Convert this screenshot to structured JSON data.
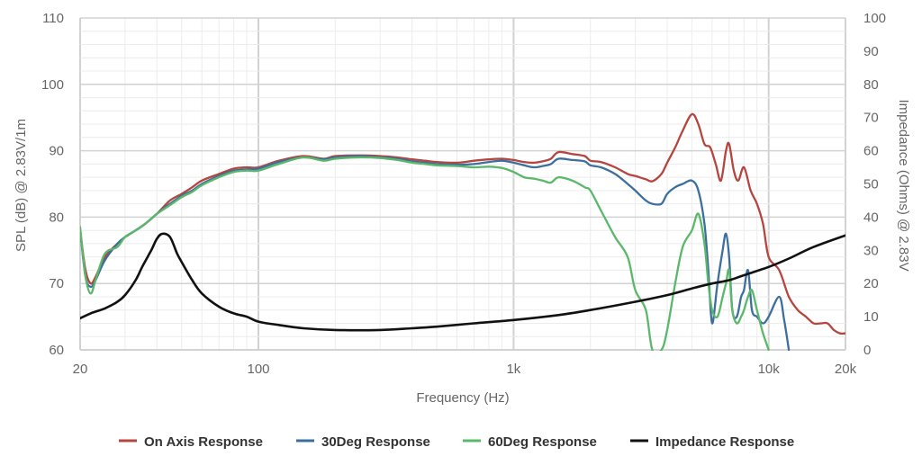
{
  "chart_data": {
    "type": "line",
    "xlabel": "Frequency (Hz)",
    "ylabel": "SPL (dB) @ 2.83V/1m",
    "y2label": "Impedance (Ohms) @ 2.83V",
    "xscale": "log",
    "xlim": [
      20,
      20000
    ],
    "ylim": [
      60,
      110
    ],
    "y2lim": [
      0,
      100
    ],
    "grid": true,
    "legend_position": "bottom",
    "x_ticks": [
      {
        "value": 20,
        "label": "20"
      },
      {
        "value": 100,
        "label": "100"
      },
      {
        "value": 1000,
        "label": "1k"
      },
      {
        "value": 10000,
        "label": "10k"
      },
      {
        "value": 20000,
        "label": "20k"
      }
    ],
    "y_ticks": [
      "60",
      "70",
      "80",
      "90",
      "100",
      "110"
    ],
    "y2_ticks": [
      "0",
      "10",
      "20",
      "30",
      "40",
      "50",
      "60",
      "70",
      "80",
      "90",
      "100"
    ],
    "series": [
      {
        "name": "On Axis Response",
        "color": "#b5453f",
        "axis": "left",
        "x": [
          20,
          21,
          22,
          23,
          25,
          28,
          30,
          33,
          36,
          40,
          45,
          50,
          55,
          60,
          70,
          80,
          90,
          100,
          120,
          150,
          180,
          200,
          250,
          300,
          350,
          400,
          450,
          500,
          600,
          700,
          800,
          900,
          1000,
          1100,
          1200,
          1300,
          1400,
          1500,
          1700,
          1900,
          2000,
          2200,
          2500,
          2800,
          3000,
          3300,
          3500,
          3800,
          4000,
          4300,
          4600,
          5000,
          5300,
          5600,
          5900,
          6200,
          6500,
          6800,
          7000,
          7300,
          7600,
          8000,
          8500,
          9000,
          9500,
          10000,
          11000,
          12000,
          13000,
          14000,
          15000,
          16000,
          17000,
          18000,
          19000,
          20000
        ],
        "y": [
          78,
          72,
          70,
          71,
          74,
          76,
          77,
          78,
          79,
          80.5,
          82.5,
          83.5,
          84.5,
          85.5,
          86.5,
          87.3,
          87.5,
          87.5,
          88.5,
          89.2,
          88.8,
          89.2,
          89.3,
          89.2,
          89,
          88.7,
          88.5,
          88.3,
          88.2,
          88.5,
          88.7,
          88.8,
          88.6,
          88.3,
          88.2,
          88.4,
          88.8,
          89.8,
          89.5,
          89.2,
          88.5,
          88.3,
          87.5,
          86.5,
          86.2,
          85.7,
          85.4,
          86.5,
          88.2,
          90.5,
          93,
          95.5,
          94,
          91,
          90.5,
          88,
          85.5,
          90,
          91,
          87,
          85.5,
          87.5,
          84,
          82,
          79,
          74,
          72,
          68,
          66,
          65,
          64,
          64,
          64,
          63,
          62.5,
          62.5
        ]
      },
      {
        "name": "30Deg Response",
        "color": "#3d6f9e",
        "axis": "left",
        "x": [
          20,
          21,
          22,
          23,
          25,
          28,
          30,
          33,
          36,
          40,
          45,
          50,
          55,
          60,
          70,
          80,
          90,
          100,
          120,
          150,
          180,
          200,
          250,
          300,
          350,
          400,
          450,
          500,
          600,
          700,
          800,
          900,
          1000,
          1100,
          1200,
          1300,
          1400,
          1500,
          1700,
          1900,
          2000,
          2200,
          2500,
          2800,
          3000,
          3300,
          3500,
          3800,
          4000,
          4300,
          4600,
          5000,
          5300,
          5600,
          5800,
          6000,
          6300,
          6600,
          6800,
          7000,
          7200,
          7500,
          7800,
          8000,
          8300,
          8600,
          9000,
          9500,
          10000,
          11000,
          11500,
          12000
        ],
        "y": [
          78,
          71,
          69.5,
          70.5,
          73.5,
          76,
          77,
          78,
          79,
          80.5,
          82,
          83.2,
          84,
          85,
          86.2,
          87,
          87.2,
          87.3,
          88.3,
          89,
          88.7,
          89,
          89.2,
          89,
          88.8,
          88.4,
          88.2,
          88,
          87.9,
          88,
          88.3,
          88.5,
          88.2,
          87.8,
          87.5,
          87.7,
          88,
          88.8,
          88.6,
          88.4,
          87.8,
          87.5,
          86.5,
          85,
          84,
          82.5,
          82,
          82,
          83.5,
          84.5,
          85,
          85.5,
          84,
          79,
          72,
          64,
          70,
          75,
          77.5,
          74,
          66,
          65,
          68,
          69,
          72,
          66,
          65,
          64,
          65,
          68,
          64.5,
          60
        ]
      },
      {
        "name": "60Deg Response",
        "color": "#5bb86b",
        "axis": "left",
        "x": [
          20,
          21,
          22,
          23,
          25,
          28,
          30,
          33,
          36,
          40,
          45,
          50,
          55,
          60,
          70,
          80,
          90,
          100,
          120,
          150,
          180,
          200,
          250,
          300,
          350,
          400,
          450,
          500,
          600,
          700,
          800,
          900,
          1000,
          1100,
          1200,
          1300,
          1400,
          1500,
          1700,
          1900,
          2000,
          2200,
          2500,
          2800,
          3000,
          3300,
          3500,
          3800,
          4000,
          4300,
          4600,
          5000,
          5300,
          5600,
          5800,
          6000,
          6300,
          6600,
          6800,
          7000,
          7200,
          7500,
          7800,
          8000,
          8300,
          8600,
          9000,
          9500,
          10000
        ],
        "y": [
          78.5,
          71,
          68.5,
          70.5,
          74.5,
          75.5,
          77,
          78,
          79,
          80.5,
          81.8,
          83,
          83.8,
          84.8,
          86,
          86.8,
          87,
          87,
          88,
          89,
          88.5,
          88.8,
          89,
          88.9,
          88.6,
          88.2,
          88,
          87.8,
          87.7,
          87.5,
          87.6,
          87.4,
          86.8,
          86,
          85.8,
          85.5,
          85.2,
          86,
          85.5,
          84.5,
          84,
          81,
          77,
          74,
          69,
          66,
          60,
          60,
          63,
          70,
          75.5,
          78,
          80.5,
          76,
          70,
          66,
          65,
          68,
          70,
          72,
          66,
          64,
          65,
          66,
          68,
          69,
          66,
          62.5,
          60
        ]
      },
      {
        "name": "Impedance Response",
        "color": "#111111",
        "axis": "right",
        "x": [
          20,
          22,
          25,
          28,
          30,
          33,
          35,
          38,
          40,
          42,
          45,
          48,
          50,
          55,
          60,
          70,
          80,
          90,
          100,
          120,
          150,
          200,
          300,
          400,
          500,
          700,
          1000,
          1500,
          2000,
          3000,
          4000,
          5000,
          6000,
          7000,
          8000,
          10000,
          12000,
          15000,
          20000
        ],
        "y": [
          9.5,
          11,
          12.5,
          14.5,
          16.5,
          21,
          25,
          30,
          33.5,
          35,
          34,
          29,
          26.5,
          21,
          17,
          13,
          11,
          10,
          8.5,
          7.5,
          6.5,
          6,
          6,
          6.5,
          7,
          8,
          9,
          10.5,
          12,
          14.5,
          16.5,
          18.5,
          20,
          21,
          22.5,
          25,
          27.5,
          31,
          34.5
        ]
      }
    ]
  }
}
